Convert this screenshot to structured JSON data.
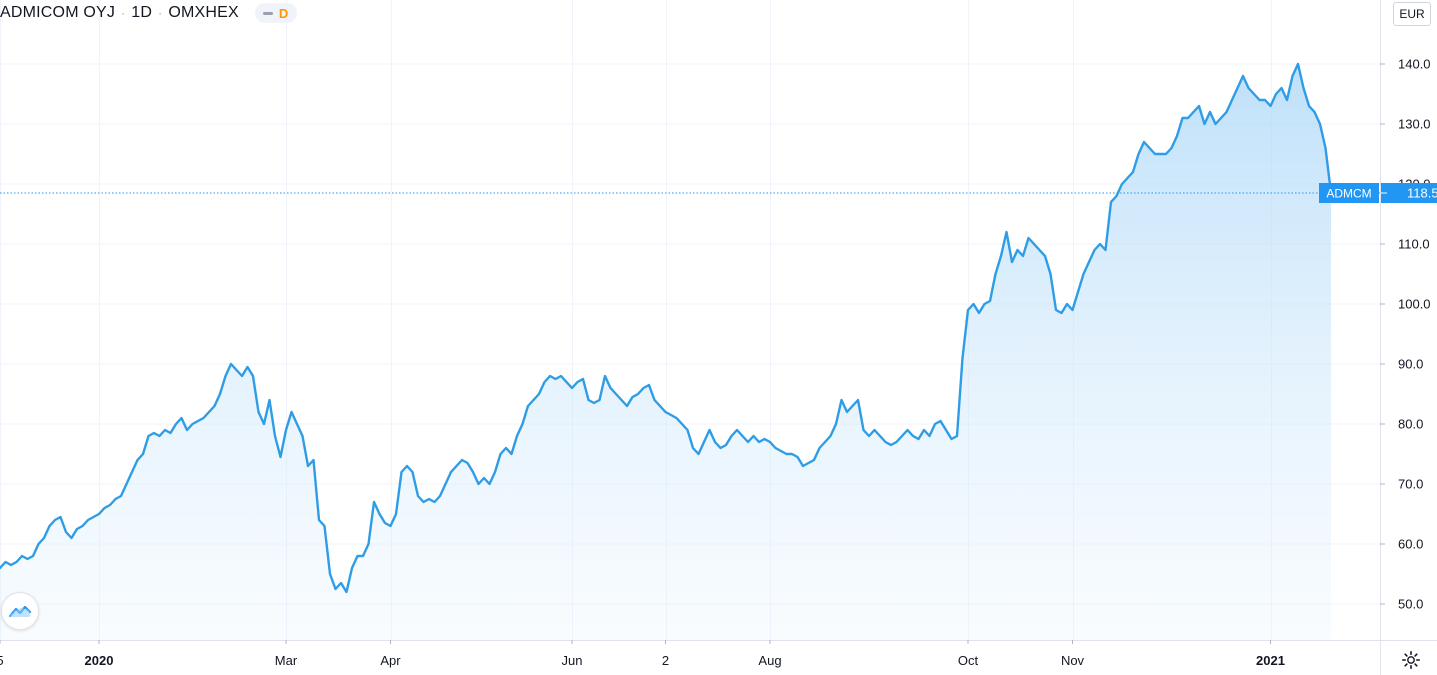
{
  "header": {
    "symbol": "ADMICOM OYJ",
    "interval": "1D",
    "exchange": "OMXHEX",
    "status_letter": "D"
  },
  "currency": "EUR",
  "price_label": {
    "ticker": "ADMCM",
    "value": "118.5"
  },
  "colors": {
    "line": "#2f9ce6",
    "fill_top": "#a9d6f8",
    "label_bg": "#2196f3",
    "grid": "#f0f3fa"
  },
  "icons": {
    "logo": "tradingview-logo-icon",
    "settings": "gear-icon"
  },
  "chart_data": {
    "type": "area",
    "ylim": [
      44,
      146
    ],
    "yticks": [
      50.0,
      60.0,
      70.0,
      80.0,
      90.0,
      100.0,
      110.0,
      120.0,
      130.0,
      140.0
    ],
    "ytick_labels": [
      "50.0",
      "60.0",
      "70.0",
      "80.0",
      "90.0",
      "100.0",
      "110.0",
      "120.0",
      "130.0",
      "140.0"
    ],
    "x_labels": [
      {
        "label": "5",
        "index": 0,
        "bold": false
      },
      {
        "label": "2020",
        "index": 18,
        "bold": true
      },
      {
        "label": "Mar",
        "index": 52,
        "bold": false
      },
      {
        "label": "Apr",
        "index": 71,
        "bold": false
      },
      {
        "label": "Jun",
        "index": 104,
        "bold": false
      },
      {
        "label": "2",
        "index": 121,
        "bold": false
      },
      {
        "label": "Aug",
        "index": 140,
        "bold": false
      },
      {
        "label": "Oct",
        "index": 176,
        "bold": false
      },
      {
        "label": "Nov",
        "index": 195,
        "bold": false
      },
      {
        "label": "2021",
        "index": 231,
        "bold": true
      }
    ],
    "series": [
      {
        "values": [
          56,
          57,
          56.5,
          57,
          58,
          57.5,
          58,
          60,
          61,
          63,
          64,
          64.5,
          62,
          61,
          62.5,
          63,
          64,
          64.5,
          65,
          66,
          66.5,
          67.5,
          68,
          70,
          72,
          74,
          75,
          78,
          78.5,
          78,
          79,
          78.5,
          80,
          81,
          79,
          80,
          80.5,
          81,
          82,
          83,
          85,
          88,
          90,
          89,
          88,
          89.5,
          88,
          82,
          80,
          84,
          78,
          74.5,
          79,
          82,
          80,
          78,
          73,
          74,
          64,
          63,
          55,
          52.5,
          53.5,
          52,
          56,
          58,
          58,
          60,
          67,
          65,
          63.5,
          63,
          65,
          72,
          73,
          72,
          68,
          67,
          67.5,
          67,
          68,
          70,
          72,
          73,
          74,
          73.5,
          72,
          70,
          71,
          70,
          72,
          75,
          76,
          75,
          78,
          80,
          83,
          84,
          85,
          87,
          88,
          87.5,
          88,
          87,
          86,
          87,
          87.5,
          84,
          83.5,
          84,
          88,
          86,
          85,
          84,
          83,
          84.5,
          85,
          86,
          86.5,
          84,
          83,
          82,
          81.5,
          81,
          80,
          79,
          76,
          75,
          77,
          79,
          77,
          76,
          76.5,
          78,
          79,
          78,
          77,
          78,
          77,
          77.5,
          77,
          76,
          75.5,
          75,
          75,
          74.5,
          73,
          73.5,
          74,
          76,
          77,
          78,
          80,
          84,
          82,
          83,
          84,
          79,
          78,
          79,
          78,
          77,
          76.5,
          77,
          78,
          79,
          78,
          77.5,
          79,
          78,
          80,
          80.5,
          79,
          77.5,
          78,
          91,
          99,
          100,
          98.5,
          100,
          100.5,
          105,
          108,
          112,
          107,
          109,
          108,
          111,
          110,
          109,
          108,
          105,
          99,
          98.5,
          100,
          99,
          102,
          105,
          107,
          109,
          110,
          109,
          117,
          118,
          120,
          121,
          122,
          125,
          127,
          126,
          125,
          125,
          125,
          126,
          128,
          131,
          131,
          132,
          133,
          130,
          132,
          130,
          131,
          132,
          134,
          136,
          138,
          136,
          135,
          134,
          134,
          133,
          135,
          136,
          134,
          138,
          140,
          136,
          133,
          132,
          130,
          126,
          118.5
        ]
      }
    ]
  }
}
